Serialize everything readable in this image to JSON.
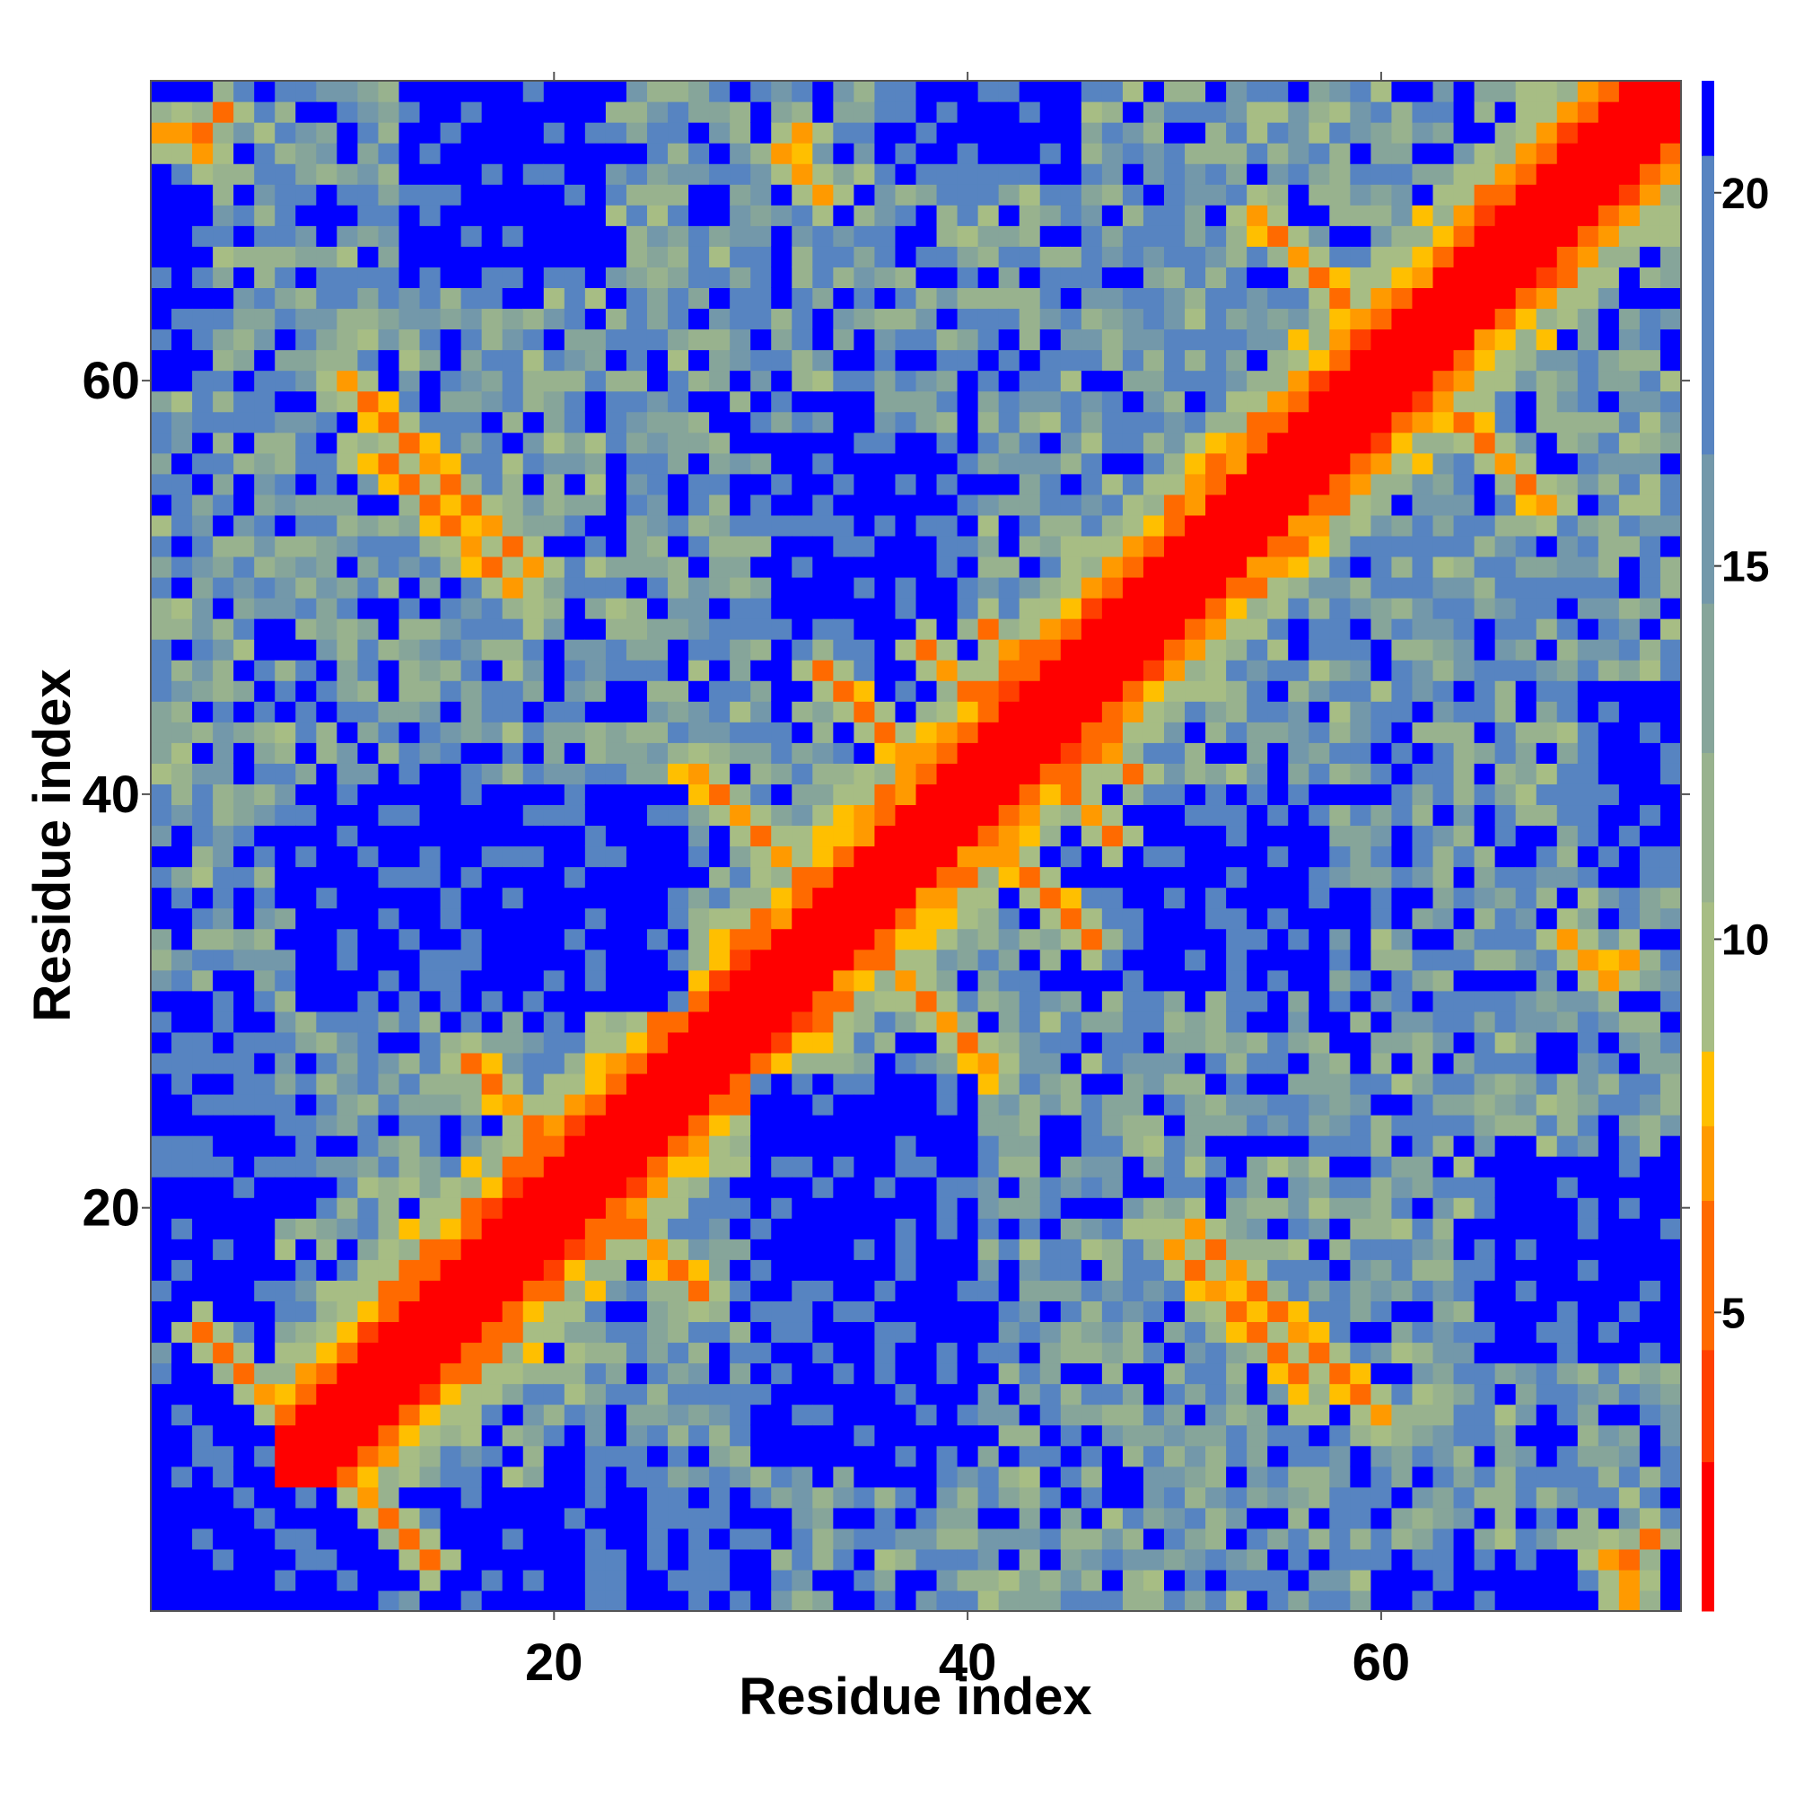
{
  "chart_data": {
    "type": "heatmap",
    "title": "",
    "xlabel": "Residue index",
    "ylabel": "Residue index",
    "n_residues": 74,
    "xlim": [
      1,
      74
    ],
    "ylim": [
      1,
      74
    ],
    "x_ticks": [
      20,
      40,
      60
    ],
    "y_ticks": [
      20,
      40,
      60
    ],
    "colorbar": {
      "ticks": [
        5,
        10,
        15,
        20
      ],
      "range": [
        1,
        21.5
      ],
      "bands": [
        {
          "upto": 3.0,
          "color": "#ff0000"
        },
        {
          "upto": 4.5,
          "color": "#ff4000"
        },
        {
          "upto": 6.5,
          "color": "#ff6a00"
        },
        {
          "upto": 7.5,
          "color": "#ff9a00"
        },
        {
          "upto": 8.5,
          "color": "#ffbf00"
        },
        {
          "upto": 10.5,
          "color": "#a7bd84"
        },
        {
          "upto": 12.5,
          "color": "#98b28e"
        },
        {
          "upto": 14.5,
          "color": "#86a59a"
        },
        {
          "upto": 16.5,
          "color": "#7398aa"
        },
        {
          "upto": 20.5,
          "color": "#5784c1"
        },
        {
          "upto": 99,
          "color": "#0000ff"
        }
      ]
    },
    "value_description": "Pairwise C-alpha distance matrix values (Angstrom-like), symmetric",
    "contacts": [
      [
        3,
        14
      ],
      [
        4,
        13
      ],
      [
        5,
        12
      ],
      [
        6,
        11
      ],
      [
        10,
        60
      ],
      [
        11,
        59
      ],
      [
        12,
        58
      ],
      [
        13,
        57
      ],
      [
        14,
        56
      ],
      [
        15,
        55
      ],
      [
        16,
        54
      ],
      [
        17,
        53
      ],
      [
        18,
        52
      ],
      [
        18,
        52
      ],
      [
        19,
        51
      ],
      [
        27,
        41
      ],
      [
        28,
        40
      ],
      [
        29,
        39
      ],
      [
        30,
        38
      ],
      [
        31,
        37
      ],
      [
        32,
        36
      ],
      [
        16,
        27
      ],
      [
        17,
        26
      ],
      [
        18,
        25
      ],
      [
        19,
        24
      ],
      [
        20,
        23
      ],
      [
        33,
        46
      ],
      [
        34,
        45
      ],
      [
        35,
        44
      ],
      [
        36,
        43
      ],
      [
        37,
        42
      ],
      [
        38,
        47
      ],
      [
        39,
        46
      ],
      [
        40,
        45
      ],
      [
        41,
        48
      ],
      [
        42,
        47
      ],
      [
        54,
        68
      ],
      [
        55,
        67
      ],
      [
        56,
        66
      ],
      [
        57,
        65
      ],
      [
        58,
        64
      ],
      [
        59,
        63
      ],
      [
        50,
        18
      ],
      [
        51,
        17
      ],
      [
        52,
        16
      ],
      [
        53,
        15
      ],
      [
        54,
        14
      ],
      [
        55,
        13
      ],
      [
        56,
        12
      ],
      [
        69,
        33
      ],
      [
        70,
        32
      ],
      [
        71,
        31
      ],
      [
        72,
        32
      ],
      [
        73,
        4
      ],
      [
        72,
        3
      ],
      [
        1,
        72
      ],
      [
        2,
        72
      ],
      [
        3,
        71
      ]
    ],
    "far_regions": [
      {
        "i": [
          30,
          40
        ],
        "j": [
          8,
          26
        ],
        "value": 24
      },
      {
        "i": [
          13,
          24
        ],
        "j": [
          31,
          39
        ],
        "value": 24
      },
      {
        "i": [
          45,
          55
        ],
        "j": [
          31,
          39
        ],
        "value": 24
      },
      {
        "i": [
          31,
          40
        ],
        "j": [
          45,
          57
        ],
        "value": 24
      },
      {
        "i": [
          1,
          12
        ],
        "j": [
          1,
          6
        ],
        "value": 24
      },
      {
        "i": [
          13,
          22
        ],
        "j": [
          65,
          74
        ],
        "value": 24
      },
      {
        "i": [
          65,
          74
        ],
        "j": [
          13,
          22
        ],
        "value": 24
      },
      {
        "i": [
          36,
          45
        ],
        "j": [
          70,
          74
        ],
        "value": 24
      },
      {
        "i": [
          70,
          74
        ],
        "j": [
          36,
          45
        ],
        "value": 24
      },
      {
        "i": [
          1,
          6
        ],
        "j": [
          14,
          30
        ],
        "value": 24
      },
      {
        "i": [
          14,
          30
        ],
        "j": [
          1,
          6
        ],
        "value": 24
      },
      {
        "i": [
          60,
          74
        ],
        "j": [
          1,
          3
        ],
        "value": 24
      }
    ]
  }
}
